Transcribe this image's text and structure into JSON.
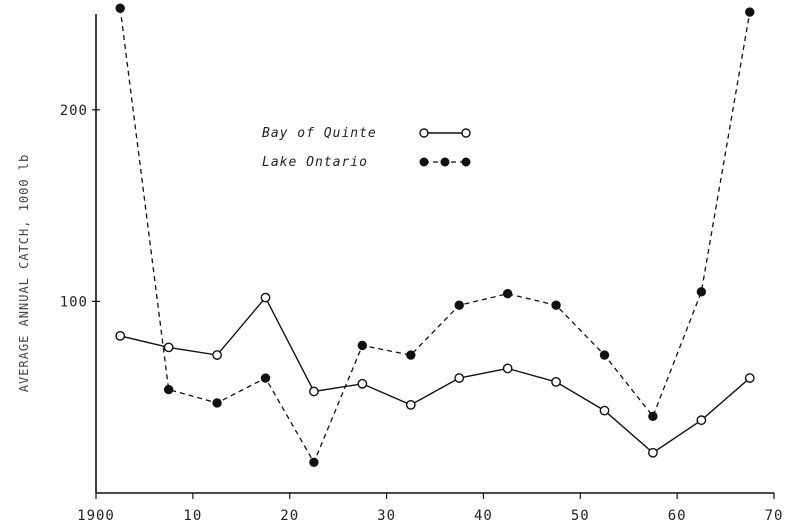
{
  "chart_data": {
    "type": "line",
    "ylabel": "AVERAGE ANNUAL CATCH, 1000 lb",
    "x_ticks": [
      {
        "value": 1900,
        "label": "1900"
      },
      {
        "value": 1910,
        "label": "10"
      },
      {
        "value": 1920,
        "label": "20"
      },
      {
        "value": 1930,
        "label": "30"
      },
      {
        "value": 1940,
        "label": "40"
      },
      {
        "value": 1950,
        "label": "50"
      },
      {
        "value": 1960,
        "label": "60"
      },
      {
        "value": 1970,
        "label": "70"
      }
    ],
    "y_ticks": [
      {
        "value": 100,
        "label": "100"
      },
      {
        "value": 200,
        "label": "200"
      }
    ],
    "xlim": [
      1900,
      1970
    ],
    "ylim": [
      0,
      250
    ],
    "grid": false,
    "legend_position": "upper-center",
    "series": [
      {
        "name": "Bay of Quinte",
        "style": "solid-open-circle",
        "x": [
          1902.5,
          1907.5,
          1912.5,
          1917.5,
          1922.5,
          1927.5,
          1932.5,
          1937.5,
          1942.5,
          1947.5,
          1952.5,
          1957.5,
          1962.5,
          1967.5
        ],
        "y": [
          82,
          76,
          72,
          102,
          53,
          57,
          46,
          60,
          65,
          58,
          43,
          21,
          38,
          60
        ]
      },
      {
        "name": "Lake Ontario",
        "style": "dashed-filled-circle",
        "x": [
          1902.5,
          1907.5,
          1912.5,
          1917.5,
          1922.5,
          1927.5,
          1932.5,
          1937.5,
          1942.5,
          1947.5,
          1952.5,
          1957.5,
          1962.5,
          1967.5
        ],
        "y": [
          253,
          54,
          47,
          60,
          16,
          77,
          72,
          98,
          104,
          98,
          72,
          40,
          105,
          251
        ]
      }
    ]
  }
}
